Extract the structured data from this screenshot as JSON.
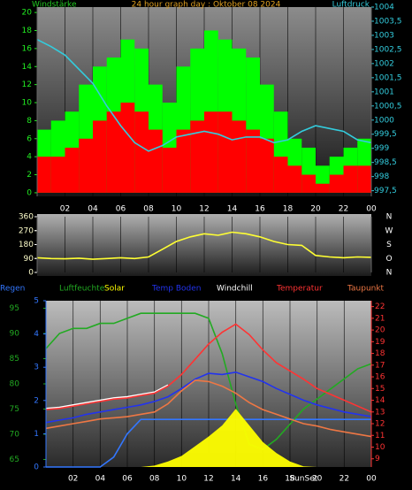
{
  "chart_data": [
    {
      "type": "combo",
      "title": "24 hour graph day : Oktober 08 2024",
      "ylabel": "Windstärke",
      "y2label": "Luftdruck",
      "xlim": [
        0,
        24
      ],
      "xticks": [
        {
          "value": 2,
          "label": "02"
        },
        {
          "value": 4,
          "label": "04"
        },
        {
          "value": 6,
          "label": "06"
        },
        {
          "value": 8,
          "label": "08"
        },
        10,
        12,
        14,
        16,
        18,
        20,
        22,
        {
          "value": 24,
          "label": "00"
        }
      ],
      "ylim": [
        -0.4,
        20.6
      ],
      "yticks": [
        0,
        2,
        4,
        6,
        8,
        10,
        12,
        14,
        16,
        18,
        20
      ],
      "y2lim": [
        997.3,
        1004
      ],
      "y2ticks": [
        {
          "value": 997.5,
          "label": "997,5"
        },
        998,
        {
          "value": 998.5,
          "label": "998,5"
        },
        999,
        {
          "value": 999.5,
          "label": "999,5"
        },
        1000,
        {
          "value": 1000.5,
          "label": "1000,5"
        },
        1001,
        {
          "value": 1001.5,
          "label": "1001,5"
        },
        1002,
        {
          "value": 1002.5,
          "label": "1002,5"
        },
        1003,
        {
          "value": 1003.5,
          "label": "1003,5"
        },
        1004
      ],
      "grid": "x",
      "series": [
        {
          "type": "bar",
          "color": "#00ff00",
          "x": [
            0,
            1,
            2,
            3,
            4,
            5,
            6,
            7,
            8,
            9,
            10,
            11,
            12,
            13,
            14,
            15,
            16,
            17,
            18,
            19,
            20,
            21,
            22,
            23
          ],
          "values": [
            7,
            8,
            9,
            12,
            14,
            15,
            17,
            16,
            12,
            10,
            14,
            16,
            18,
            17,
            16,
            15,
            12,
            9,
            6,
            5,
            3,
            4,
            5,
            6
          ]
        },
        {
          "type": "bar",
          "color": "#ff0000",
          "x": [
            0,
            1,
            2,
            3,
            4,
            5,
            6,
            7,
            8,
            9,
            10,
            11,
            12,
            13,
            14,
            15,
            16,
            17,
            18,
            19,
            20,
            21,
            22,
            23
          ],
          "values": [
            4,
            4,
            5,
            6,
            8,
            9,
            10,
            9,
            7,
            5,
            7,
            8,
            9,
            9,
            8,
            7,
            6,
            4,
            3,
            2,
            1,
            2,
            3,
            3
          ]
        },
        {
          "type": "line",
          "axis": "y2",
          "color": "#33ccdd",
          "x": [
            0,
            1,
            2,
            3,
            4,
            5,
            6,
            7,
            8,
            9,
            10,
            11,
            12,
            13,
            14,
            15,
            16,
            17,
            18,
            19,
            20,
            21,
            22,
            23,
            24
          ],
          "values": [
            1002.85,
            1002.6,
            1002.3,
            1001.8,
            1001.3,
            1000.5,
            999.8,
            999.2,
            998.9,
            999.1,
            999.4,
            999.5,
            999.6,
            999.5,
            999.3,
            999.4,
            999.4,
            999.2,
            999.3,
            999.6,
            999.8,
            999.7,
            999.6,
            999.3,
            999.2
          ]
        }
      ]
    },
    {
      "type": "line",
      "xlim": [
        0,
        24
      ],
      "xticks": [
        2,
        4,
        6,
        8,
        10,
        12,
        14,
        16,
        18,
        20,
        22,
        24
      ],
      "ylim": [
        0,
        360
      ],
      "yticks": [
        0,
        90,
        180,
        270,
        360
      ],
      "y2ticks": [
        {
          "value": 0,
          "label": "N"
        },
        {
          "value": 90,
          "label": "O"
        },
        {
          "value": 180,
          "label": "S"
        },
        {
          "value": 270,
          "label": "W"
        },
        {
          "value": 360,
          "label": "N"
        }
      ],
      "grid": "x",
      "series": [
        {
          "type": "line",
          "color": "#ffff33",
          "x": [
            0,
            1,
            2,
            3,
            4,
            5,
            6,
            7,
            8,
            9,
            10,
            11,
            12,
            13,
            14,
            15,
            16,
            17,
            18,
            19,
            20,
            21,
            22,
            23,
            24
          ],
          "values": [
            95,
            90,
            88,
            92,
            85,
            90,
            95,
            90,
            100,
            150,
            200,
            230,
            250,
            240,
            260,
            250,
            230,
            200,
            180,
            175,
            110,
            100,
            95,
            100,
            98
          ]
        }
      ]
    },
    {
      "type": "line",
      "xlim": [
        0,
        24
      ],
      "xticks": [
        {
          "value": 2,
          "label": "02"
        },
        {
          "value": 4,
          "label": "04"
        },
        {
          "value": 6,
          "label": "06"
        },
        {
          "value": 8,
          "label": "08"
        },
        10,
        12,
        14,
        16,
        18,
        20,
        22,
        {
          "value": 24,
          "label": "00"
        }
      ],
      "ylim": [
        63.5,
        96.5
      ],
      "yticks": [
        65,
        70,
        75,
        80,
        85,
        90,
        95
      ],
      "y2lim": [
        8.3,
        22.5
      ],
      "y2ticks": [
        9,
        10,
        11,
        12,
        13,
        14,
        15,
        16,
        17,
        18,
        19,
        20,
        21,
        22
      ],
      "y3lim": [
        0,
        5
      ],
      "y3ticks": [
        0,
        1,
        2,
        3,
        4,
        5
      ],
      "y4lim": [
        0,
        1200
      ],
      "grid": "x",
      "annotations": [
        {
          "text": "SunSet",
          "x": 19
        }
      ],
      "series": [
        {
          "name": "Regen",
          "type": "line",
          "axis": "y3",
          "color": "#3377ff",
          "x": [
            0,
            1,
            2,
            3,
            4,
            5,
            6,
            7,
            8,
            9,
            10,
            11,
            12,
            13,
            14,
            15,
            16,
            17,
            18,
            19,
            20,
            21,
            22,
            23,
            24
          ],
          "values": [
            0,
            0,
            0,
            0,
            0,
            0.3,
            1.0,
            1.43,
            1.43,
            1.43,
            1.43,
            1.43,
            1.43,
            1.43,
            1.43,
            1.43,
            1.43,
            1.43,
            1.43,
            1.43,
            1.43,
            1.43,
            1.43,
            1.43,
            1.43
          ]
        },
        {
          "name": "Luftfeuchte",
          "type": "line",
          "axis": "y",
          "color": "#22aa22",
          "x": [
            0,
            1,
            2,
            3,
            4,
            5,
            6,
            7,
            8,
            9,
            10,
            11,
            12,
            13,
            14,
            15,
            16,
            17,
            18,
            19,
            20,
            21,
            22,
            23,
            24
          ],
          "values": [
            87,
            90,
            91,
            91,
            92,
            92,
            93,
            94,
            94,
            94,
            94,
            94,
            93,
            86,
            76,
            68,
            67,
            69,
            72,
            75,
            77,
            79,
            81,
            83,
            84
          ]
        },
        {
          "name": "Solar",
          "type": "area",
          "axis": "y4",
          "color": "#ffff00",
          "x": [
            0,
            1,
            2,
            3,
            4,
            5,
            6,
            7,
            8,
            9,
            10,
            11,
            12,
            13,
            14,
            15,
            16,
            17,
            18,
            19,
            20,
            21,
            22,
            23,
            24
          ],
          "values": [
            0,
            0,
            0,
            0,
            0,
            0,
            0,
            0,
            10,
            40,
            80,
            150,
            220,
            300,
            420,
            300,
            180,
            100,
            40,
            5,
            0,
            0,
            0,
            0,
            0
          ]
        },
        {
          "name": "Temp Boden",
          "type": "line",
          "axis": "y2",
          "color": "#2233ee",
          "x": [
            0,
            1,
            2,
            3,
            4,
            5,
            6,
            7,
            8,
            9,
            10,
            11,
            12,
            13,
            14,
            15,
            16,
            17,
            18,
            19,
            20,
            21,
            22,
            23,
            24
          ],
          "values": [
            12.1,
            12.3,
            12.5,
            12.8,
            13.0,
            13.2,
            13.4,
            13.6,
            13.9,
            14.3,
            15.0,
            15.8,
            16.3,
            16.2,
            16.4,
            16.0,
            15.6,
            15.0,
            14.5,
            14.0,
            13.6,
            13.3,
            13.0,
            12.8,
            12.6
          ]
        },
        {
          "name": "Windchill",
          "type": "line",
          "axis": "y2",
          "color": "#ffffff",
          "x": [
            0,
            1,
            2,
            3,
            4,
            5,
            6,
            7,
            8,
            9,
            10,
            11,
            12,
            13,
            14,
            15,
            16,
            17,
            18,
            19,
            20,
            21,
            22,
            23,
            24
          ],
          "values": [
            13.3,
            13.4,
            13.6,
            13.8,
            14.0,
            14.2,
            14.3,
            14.5,
            14.7,
            15.3,
            null,
            null,
            null,
            null,
            null,
            null,
            null,
            null,
            null,
            null,
            null,
            null,
            null,
            null,
            null
          ]
        },
        {
          "name": "Temperatur",
          "type": "line",
          "axis": "y2",
          "color": "#ff3333",
          "x": [
            0,
            1,
            2,
            3,
            4,
            5,
            6,
            7,
            8,
            9,
            10,
            11,
            12,
            13,
            14,
            15,
            16,
            17,
            18,
            19,
            20,
            21,
            22,
            23,
            24
          ],
          "values": [
            13.2,
            13.3,
            13.5,
            13.7,
            13.9,
            14.1,
            14.2,
            14.4,
            14.6,
            15.2,
            16.2,
            17.5,
            18.8,
            19.8,
            20.5,
            19.6,
            18.3,
            17.2,
            16.5,
            15.8,
            15.0,
            14.5,
            14.0,
            13.5,
            13.0
          ]
        },
        {
          "name": "Taupunkt",
          "type": "line",
          "axis": "y2",
          "color": "#ee7744",
          "x": [
            0,
            1,
            2,
            3,
            4,
            5,
            6,
            7,
            8,
            9,
            10,
            11,
            12,
            13,
            14,
            15,
            16,
            17,
            18,
            19,
            20,
            21,
            22,
            23,
            24
          ],
          "values": [
            11.6,
            11.8,
            12.0,
            12.2,
            12.4,
            12.5,
            12.6,
            12.8,
            13.0,
            13.7,
            14.8,
            15.7,
            15.6,
            15.2,
            14.6,
            13.8,
            13.2,
            12.8,
            12.4,
            12.0,
            11.8,
            11.5,
            11.3,
            11.1,
            10.9
          ]
        }
      ]
    }
  ]
}
